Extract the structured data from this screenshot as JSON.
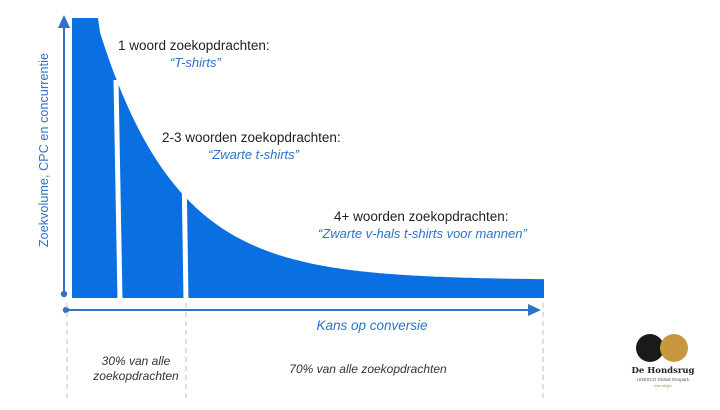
{
  "diagram": {
    "y_axis_label": "Zoekvolume, CPC en concurrentie",
    "x_axis_label": "Kans op conversie",
    "segments": [
      {
        "title": "1 woord zoekopdrachten:",
        "example": "“T-shirts”"
      },
      {
        "title": "2-3 woorden zoekopdrachten:",
        "example": "“Zwarte t-shirts”"
      },
      {
        "title": "4+ woorden zoekopdrachten:",
        "example": "“Zwarte v-hals t-shirts voor mannen”"
      }
    ],
    "shares": {
      "left": "30% van alle zoekopdrachten",
      "right": "70% van alle zoekopdrachten"
    },
    "colors": {
      "curve_fill": "#0a6fe0",
      "axis": "#2f72c8",
      "divider": "#d4d4d4"
    }
  },
  "logo": {
    "name": "De Hondsrug",
    "sub": "UNESCO Global Geopark",
    "tagline": "Kernregio"
  }
}
